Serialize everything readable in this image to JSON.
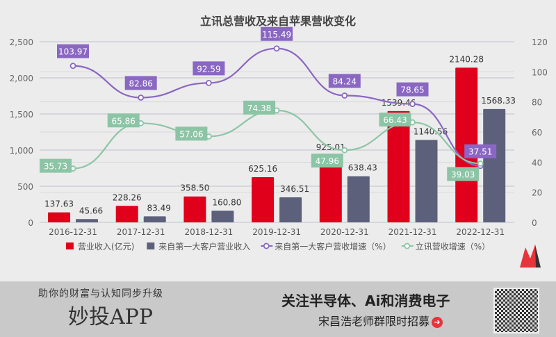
{
  "chart_data": {
    "type": "bar",
    "title": "立讯总营收及来自苹果营收变化",
    "categories": [
      "2016-12-31",
      "2017-12-31",
      "2018-12-31",
      "2019-12-31",
      "2020-12-31",
      "2021-12-31",
      "2022-12-31"
    ],
    "left_axis": {
      "ylim": [
        0,
        2500
      ],
      "ticks": [
        "0",
        "500",
        "1,000",
        "1,500",
        "2,000",
        "2,500"
      ],
      "tick_values": [
        0,
        500,
        1000,
        1500,
        2000,
        2500
      ]
    },
    "right_axis": {
      "ylim": [
        0,
        120
      ],
      "ticks": [
        "0",
        "20",
        "40",
        "60",
        "80",
        "100",
        "120"
      ],
      "tick_values": [
        0,
        20,
        40,
        60,
        80,
        100,
        120
      ]
    },
    "grid": true,
    "legend_placement": "bottom",
    "series": [
      {
        "name": "营业收入(亿元)",
        "kind": "bar",
        "axis": "left",
        "color": "#e0001b",
        "values": [
          137.63,
          228.26,
          358.5,
          625.16,
          925.01,
          1539.46,
          2140.28
        ],
        "labels": [
          "137.63",
          "228.26",
          "358.50",
          "625.16",
          "925.01",
          "1539.46",
          "2140.28"
        ]
      },
      {
        "name": "来自第一大客户营业收入",
        "kind": "bar",
        "axis": "left",
        "color": "#5d607a",
        "values": [
          45.66,
          83.49,
          160.8,
          346.51,
          638.43,
          1140.56,
          1568.33
        ],
        "labels": [
          "45.66",
          "83.49",
          "160.80",
          "346.51",
          "638.43",
          "1140.56",
          "1568.33"
        ]
      },
      {
        "name": "来自第一大客户营收增速（%）",
        "kind": "line",
        "axis": "right",
        "color": "#8a67c2",
        "values": [
          103.97,
          82.86,
          92.59,
          115.49,
          84.24,
          78.65,
          37.51
        ],
        "labels": [
          "103.97",
          "82.86",
          "92.59",
          "115.49",
          "84.24",
          "78.65",
          "37.51"
        ]
      },
      {
        "name": "立讯营收增速（%）",
        "kind": "line",
        "axis": "right",
        "color": "#8cc5a6",
        "values": [
          35.73,
          65.86,
          57.06,
          74.38,
          47.96,
          66.43,
          39.03
        ],
        "labels": [
          "35.73",
          "65.86",
          "57.06",
          "74.38",
          "47.96",
          "66.43",
          "39.03"
        ]
      }
    ]
  },
  "banner": {
    "slogan": "助你的财富与认知同步升级",
    "app_name": "妙投APP",
    "focus": "关注半导体、Ai和消费电子",
    "recruit": "宋昌浩老师群限时招募",
    "arrow_icon": "arrow-right-circle-icon",
    "qr_icon": "qr-code-icon"
  }
}
